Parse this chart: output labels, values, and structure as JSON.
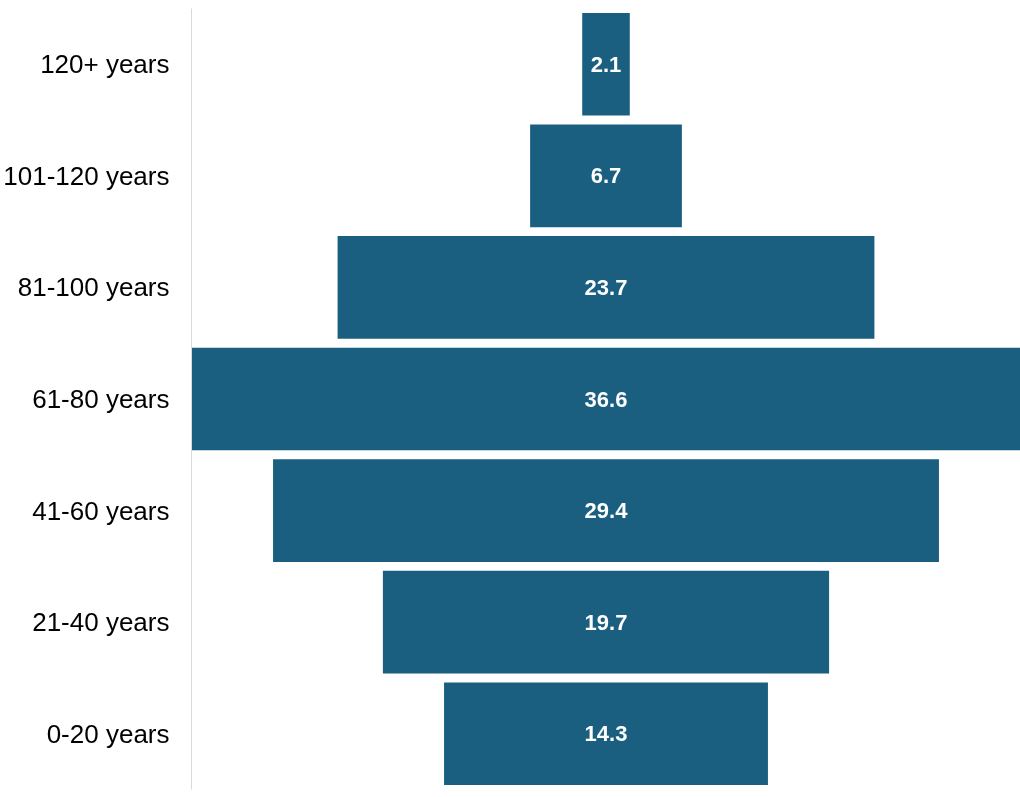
{
  "chart_data": {
    "type": "other",
    "categories": [
      "120+ years",
      "101-120 years",
      "81-100 years",
      "61-80 years",
      "41-60 years",
      "21-40 years",
      "0-20 years"
    ],
    "values": [
      2.1,
      6.7,
      23.7,
      36.6,
      29.4,
      19.7,
      14.3
    ],
    "color": "#1a5f80",
    "data_labels": true
  }
}
